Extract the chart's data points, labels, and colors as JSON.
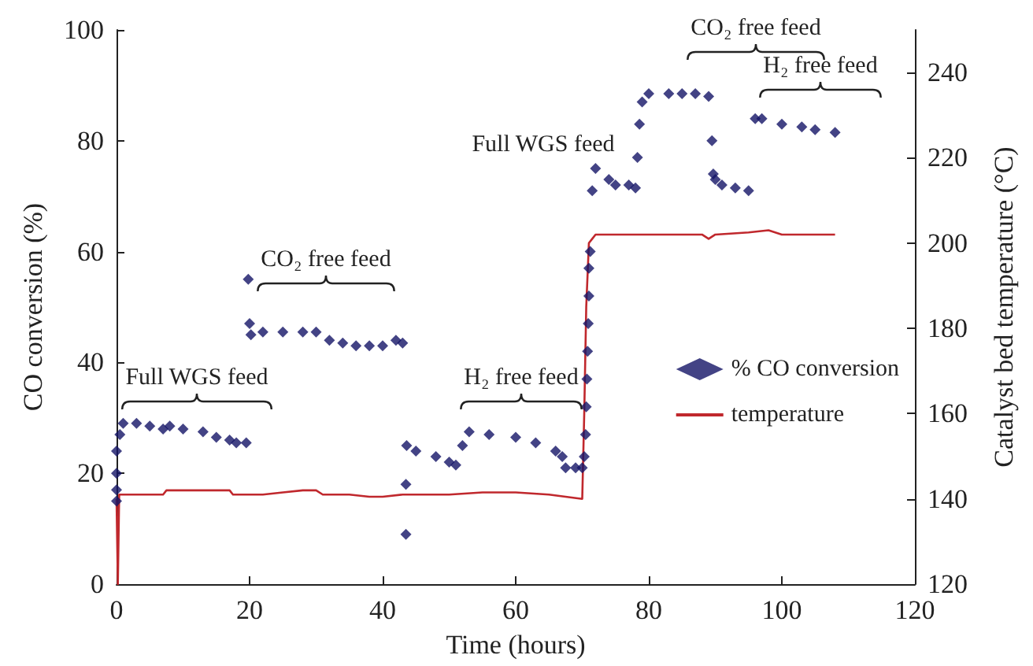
{
  "chart_data": {
    "type": "scatter",
    "xlabel": "Time (hours)",
    "ylabel": "CO conversion (%)",
    "y2label": "Catalyst bed temperature (°C)",
    "xlim": [
      0,
      120
    ],
    "xticks": [
      0,
      20,
      40,
      60,
      80,
      100,
      120
    ],
    "ylim": [
      0,
      100
    ],
    "yticks": [
      0,
      20,
      40,
      60,
      80,
      100
    ],
    "y2lim": [
      120,
      250
    ],
    "y2ticks": [
      120,
      140,
      160,
      180,
      200,
      220,
      240
    ],
    "legend": "right",
    "grid": false,
    "series": [
      {
        "name": "% CO conversion",
        "marker": "diamond",
        "color": "#141466",
        "x": [
          0,
          0,
          0,
          0,
          0.5,
          1,
          3,
          5,
          7,
          8,
          10,
          13,
          15,
          17,
          18,
          19.5,
          19.8,
          20,
          20.2,
          22,
          25,
          28,
          30,
          32,
          34,
          36,
          38,
          40,
          42,
          43,
          43.5,
          43.5,
          43.6,
          45,
          48,
          50,
          51,
          52,
          53,
          56,
          60,
          63,
          66,
          67,
          67.5,
          69,
          70,
          70.3,
          70.5,
          70.6,
          70.7,
          70.8,
          70.9,
          71,
          71,
          71.2,
          71.5,
          72,
          74,
          75,
          77,
          78,
          78.3,
          78.6,
          79,
          80,
          83,
          85,
          87,
          89,
          89.5,
          89.7,
          90,
          91,
          93,
          95,
          96,
          97,
          100,
          103,
          105,
          108
        ],
        "values": [
          15,
          17,
          20,
          24,
          27,
          29,
          29,
          28.5,
          28,
          28.5,
          28,
          27.5,
          26.5,
          26,
          25.5,
          25.5,
          55,
          47,
          45,
          45.5,
          45.5,
          45.5,
          45.5,
          44,
          43.5,
          43,
          43,
          43,
          44,
          43.5,
          9,
          18,
          25,
          24,
          23,
          22,
          21.5,
          25,
          27.5,
          27,
          26.5,
          25.5,
          24,
          23,
          21,
          21,
          21,
          23,
          27,
          32,
          37,
          42,
          47,
          52,
          57,
          60,
          71,
          75,
          73,
          72,
          72,
          71.5,
          77,
          83,
          87,
          88.5,
          88.5,
          88.5,
          88.5,
          88,
          80,
          74,
          73,
          72,
          71.5,
          71,
          84,
          84,
          83,
          82.5,
          82,
          81.5
        ]
      },
      {
        "name": "temperature",
        "type": "line",
        "axis": "y2",
        "color": "#c0282d",
        "x": [
          0,
          0.2,
          0.4,
          3,
          7,
          7.5,
          12,
          17,
          17.5,
          22,
          25,
          28,
          30,
          31,
          35,
          38,
          40,
          43,
          45,
          50,
          55,
          60,
          65,
          70,
          70.3,
          70.6,
          71,
          71.5,
          72,
          80,
          85,
          88,
          89,
          90,
          95,
          98,
          100,
          108
        ],
        "values": [
          140,
          120,
          141,
          141,
          141,
          142,
          142,
          142,
          141,
          141,
          141.5,
          142,
          142,
          141,
          141,
          140.5,
          140.5,
          141,
          141,
          141,
          141.5,
          141.5,
          141,
          140,
          160,
          185,
          200,
          201,
          202,
          202,
          202,
          202,
          201,
          202,
          202.5,
          203,
          202,
          202
        ]
      }
    ],
    "annotations": [
      "Full WGS feed",
      "CO₂ free feed",
      "H₂ free feed",
      "Full WGS feed",
      "CO₂ free feed",
      "H₂ free feed"
    ]
  }
}
